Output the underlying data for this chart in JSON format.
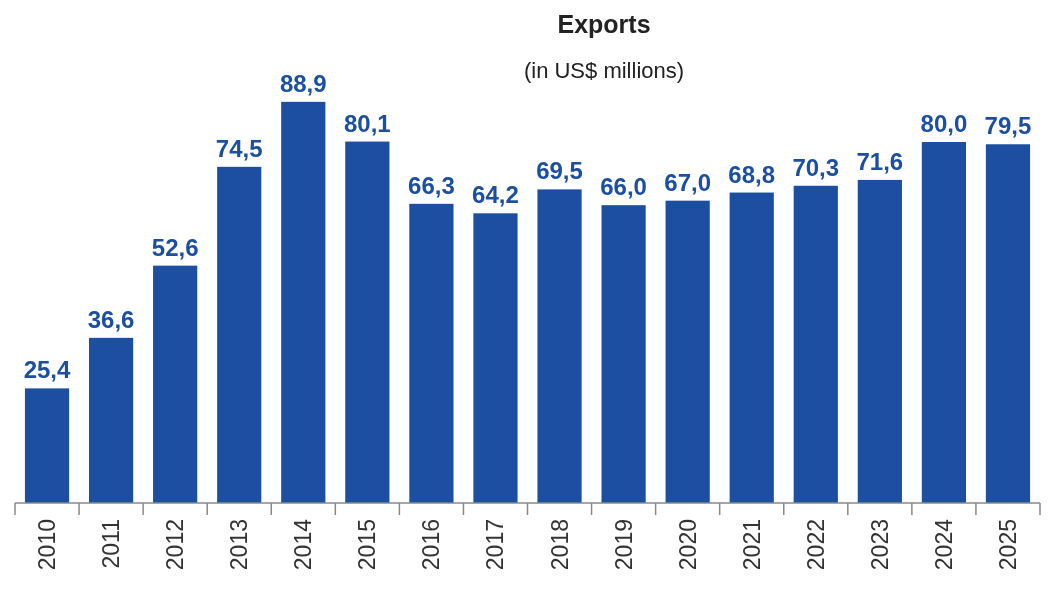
{
  "chart_data": {
    "type": "bar",
    "title": "Exports",
    "subtitle": "(in US$ millions)",
    "categories": [
      "2010",
      "2011",
      "2012",
      "2013",
      "2014",
      "2015",
      "2016",
      "2017",
      "2018",
      "2019",
      "2020",
      "2021",
      "2022",
      "2023",
      "2024",
      "2025"
    ],
    "values": [
      25.4,
      36.6,
      52.6,
      74.5,
      88.9,
      80.1,
      66.3,
      64.2,
      69.5,
      66.0,
      67.0,
      68.8,
      70.3,
      71.6,
      80.0,
      79.5
    ],
    "value_labels": [
      "25,4",
      "36,6",
      "52,6",
      "74,5",
      "88,9",
      "80,1",
      "66,3",
      "64,2",
      "69,5",
      "66,0",
      "67,0",
      "68,8",
      "70,3",
      "71,6",
      "80,0",
      "79,5"
    ],
    "color": "#1c4fa1"
  }
}
